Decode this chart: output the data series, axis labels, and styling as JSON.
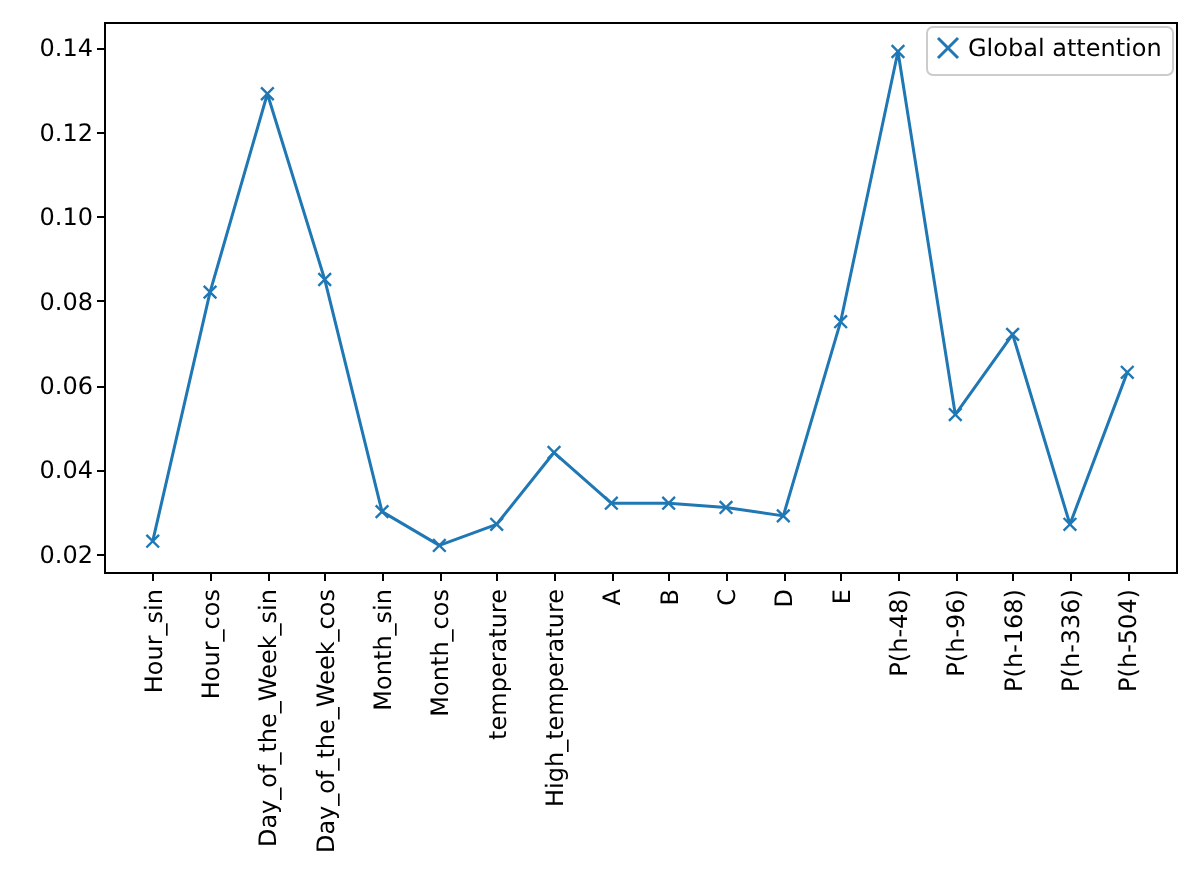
{
  "chart_data": {
    "type": "line",
    "categories": [
      "Hour_sin",
      "Hour_cos",
      "Day_of_the_Week_sin",
      "Day_of_the_Week_cos",
      "Month_sin",
      "Month_cos",
      "temperature",
      "High_temperature",
      "A",
      "B",
      "C",
      "D",
      "E",
      "P(h-48)",
      "P(h-96)",
      "P(h-168)",
      "P(h-336)",
      "P(h-504)"
    ],
    "series": [
      {
        "name": "Global attention",
        "color": "#1f77b4",
        "values": [
          0.023,
          0.082,
          0.129,
          0.085,
          0.03,
          0.022,
          0.027,
          0.044,
          0.032,
          0.032,
          0.031,
          0.029,
          0.075,
          0.139,
          0.053,
          0.072,
          0.027,
          0.063
        ]
      }
    ],
    "ylim": [
      0.0157,
      0.146
    ],
    "yticks": [
      0.02,
      0.04,
      0.06,
      0.08,
      {
        "value": 0.1,
        "label": "0.10"
      },
      0.12,
      0.14
    ],
    "grid": false,
    "legend": "top right",
    "marker": "cross",
    "line_style": "solid"
  }
}
